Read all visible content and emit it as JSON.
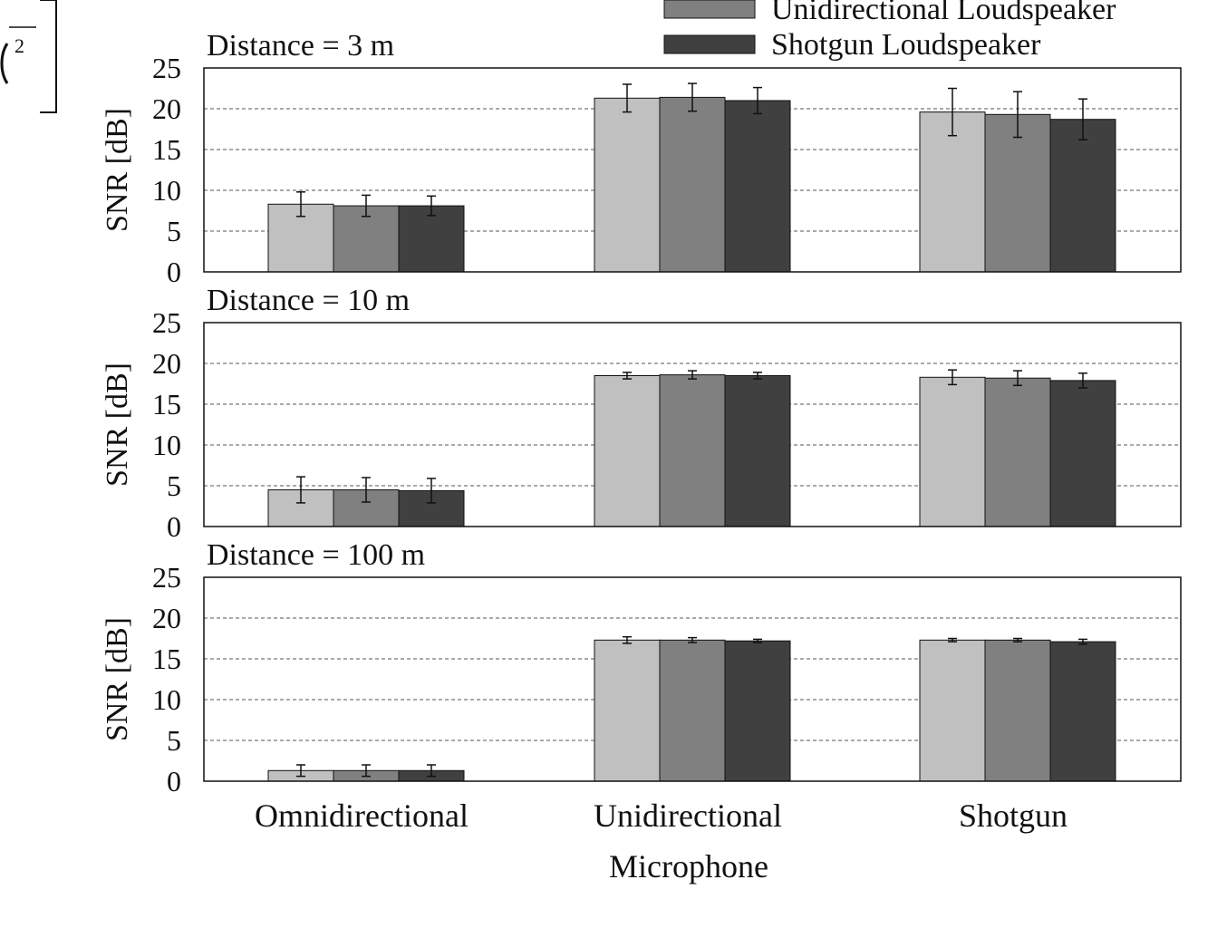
{
  "chart_data": {
    "type": "bar",
    "xlabel": "Microphone",
    "categories": [
      "Omnidirectional",
      "Unidirectional",
      "Shotgun"
    ],
    "legend": {
      "placement": "top-right",
      "entries": [
        "Unidirectional Loudspeaker",
        "Shotgun Loudspeaker"
      ]
    },
    "series_colors": [
      "#c0c0c0",
      "#808080",
      "#404040"
    ],
    "series": [
      {
        "color": "#c0c0c0"
      },
      {
        "name": "Unidirectional Loudspeaker",
        "color": "#808080"
      },
      {
        "name": "Shotgun Loudspeaker",
        "color": "#404040"
      }
    ],
    "grid": "dashed horizontal",
    "panels": [
      {
        "title": "Distance = 3 m",
        "ylabel": "SNR [dB]",
        "ylim": [
          0,
          25
        ],
        "yticks": [
          0,
          5,
          10,
          15,
          20,
          25
        ],
        "values": [
          [
            8.3,
            8.1,
            8.1
          ],
          [
            21.3,
            21.4,
            21.0
          ],
          [
            19.6,
            19.3,
            18.7
          ]
        ],
        "errors": [
          [
            1.5,
            1.3,
            1.2
          ],
          [
            1.7,
            1.7,
            1.6
          ],
          [
            2.9,
            2.8,
            2.5
          ]
        ]
      },
      {
        "title": "Distance = 10 m",
        "ylabel": "SNR [dB]",
        "ylim": [
          0,
          25
        ],
        "yticks": [
          0,
          5,
          10,
          15,
          20,
          25
        ],
        "values": [
          [
            4.5,
            4.5,
            4.4
          ],
          [
            18.5,
            18.6,
            18.5
          ],
          [
            18.3,
            18.2,
            17.9
          ]
        ],
        "errors": [
          [
            1.6,
            1.5,
            1.5
          ],
          [
            0.4,
            0.5,
            0.4
          ],
          [
            0.9,
            0.9,
            0.9
          ]
        ]
      },
      {
        "title": "Distance = 100 m",
        "ylabel": "SNR [dB]",
        "ylim": [
          0,
          25
        ],
        "yticks": [
          0,
          5,
          10,
          15,
          20,
          25
        ],
        "values": [
          [
            1.3,
            1.3,
            1.3
          ],
          [
            17.3,
            17.3,
            17.2
          ],
          [
            17.3,
            17.3,
            17.1
          ]
        ],
        "errors": [
          [
            0.7,
            0.7,
            0.7
          ],
          [
            0.4,
            0.3,
            0.2
          ],
          [
            0.2,
            0.2,
            0.3
          ]
        ]
      }
    ]
  }
}
